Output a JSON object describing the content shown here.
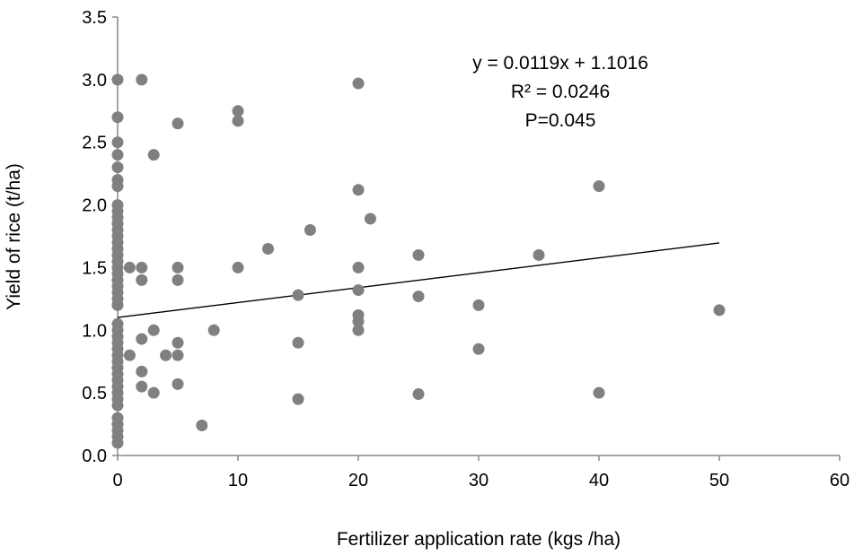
{
  "chart_data": {
    "type": "scatter",
    "xlabel": "Fertilizer application rate (kgs /ha)",
    "ylabel": "Yield of rice (t/ha)",
    "xlim": [
      0,
      60
    ],
    "ylim": [
      0,
      3.5
    ],
    "x_ticks": [
      "0",
      "10",
      "20",
      "30",
      "40",
      "50",
      "60"
    ],
    "y_ticks": [
      "0.0",
      "0.5",
      "1.0",
      "1.5",
      "2.0",
      "2.5",
      "3.0",
      "3.5"
    ],
    "grid": false,
    "legend": "none",
    "marker_color": "#808080",
    "trendline": {
      "type": "linear",
      "slope": 0.0119,
      "intercept": 1.1016,
      "x_range": [
        0,
        50
      ],
      "color": "#000000"
    },
    "annotations": [
      "y = 0.0119x + 1.1016",
      "R² = 0.0246",
      "P=0.045"
    ],
    "points": [
      [
        0,
        3.0
      ],
      [
        0,
        2.7
      ],
      [
        0,
        2.5
      ],
      [
        0,
        2.4
      ],
      [
        0,
        2.3
      ],
      [
        0,
        2.2
      ],
      [
        0,
        2.15
      ],
      [
        0,
        2.0
      ],
      [
        0,
        1.95
      ],
      [
        0,
        1.9
      ],
      [
        0,
        1.85
      ],
      [
        0,
        1.8
      ],
      [
        0,
        1.75
      ],
      [
        0,
        1.7
      ],
      [
        0,
        1.65
      ],
      [
        0,
        1.6
      ],
      [
        0,
        1.55
      ],
      [
        0,
        1.5
      ],
      [
        0,
        1.45
      ],
      [
        0,
        1.4
      ],
      [
        0,
        1.35
      ],
      [
        0,
        1.3
      ],
      [
        0,
        1.25
      ],
      [
        0,
        1.2
      ],
      [
        0,
        1.05
      ],
      [
        0,
        1.0
      ],
      [
        0,
        0.95
      ],
      [
        0,
        0.9
      ],
      [
        0,
        0.85
      ],
      [
        0,
        0.8
      ],
      [
        0,
        0.75
      ],
      [
        0,
        0.7
      ],
      [
        0,
        0.65
      ],
      [
        0,
        0.6
      ],
      [
        0,
        0.55
      ],
      [
        0,
        0.5
      ],
      [
        0,
        0.45
      ],
      [
        0,
        0.4
      ],
      [
        0,
        0.3
      ],
      [
        0,
        0.25
      ],
      [
        0,
        0.2
      ],
      [
        0,
        0.15
      ],
      [
        0,
        0.1
      ],
      [
        1,
        1.5
      ],
      [
        1,
        0.8
      ],
      [
        2,
        3.0
      ],
      [
        2,
        1.5
      ],
      [
        2,
        1.4
      ],
      [
        2,
        0.93
      ],
      [
        2,
        0.67
      ],
      [
        2,
        0.55
      ],
      [
        3,
        2.4
      ],
      [
        3,
        1.0
      ],
      [
        3,
        0.5
      ],
      [
        4,
        0.8
      ],
      [
        5,
        2.65
      ],
      [
        5,
        1.5
      ],
      [
        5,
        1.4
      ],
      [
        5,
        0.9
      ],
      [
        5,
        0.8
      ],
      [
        5,
        0.57
      ],
      [
        7,
        0.24
      ],
      [
        8,
        1.0
      ],
      [
        10,
        2.75
      ],
      [
        10,
        2.67
      ],
      [
        10,
        1.5
      ],
      [
        12.5,
        1.65
      ],
      [
        15,
        1.28
      ],
      [
        15,
        0.9
      ],
      [
        15,
        0.45
      ],
      [
        16,
        1.8
      ],
      [
        20,
        2.97
      ],
      [
        20,
        2.12
      ],
      [
        20,
        1.5
      ],
      [
        20,
        1.32
      ],
      [
        20,
        1.12
      ],
      [
        20,
        1.07
      ],
      [
        20,
        1.0
      ],
      [
        21,
        1.89
      ],
      [
        25,
        1.6
      ],
      [
        25,
        1.27
      ],
      [
        25,
        0.49
      ],
      [
        30,
        1.2
      ],
      [
        30,
        0.85
      ],
      [
        35,
        1.6
      ],
      [
        40,
        2.15
      ],
      [
        40,
        0.5
      ],
      [
        50,
        1.16
      ]
    ]
  }
}
